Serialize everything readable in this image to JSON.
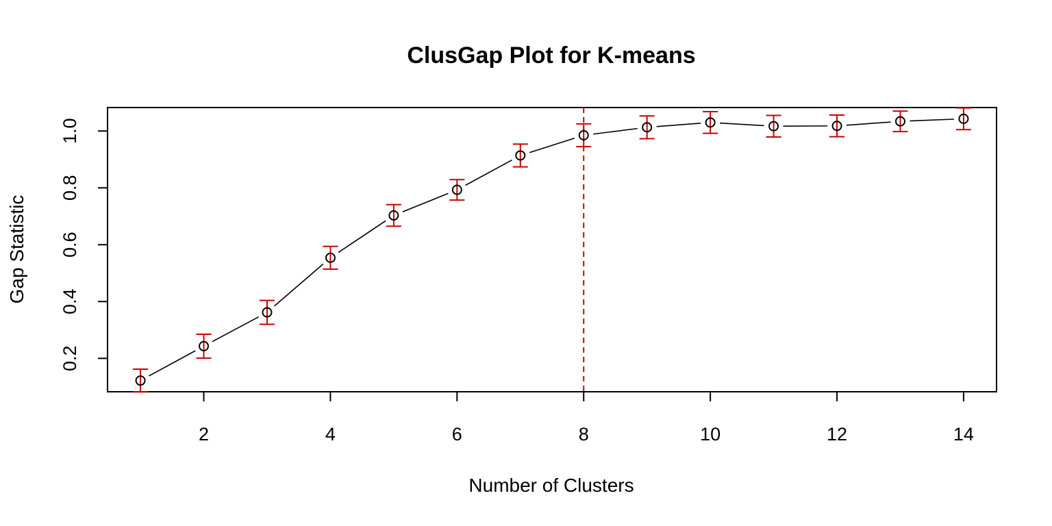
{
  "chart_data": {
    "type": "scatter",
    "title": "ClusGap Plot for K-means",
    "xlabel": "Number of Clusters",
    "ylabel": "Gap Statistic",
    "x": [
      1,
      2,
      3,
      4,
      5,
      6,
      7,
      8,
      9,
      10,
      11,
      12,
      13,
      14
    ],
    "values": [
      0.122,
      0.243,
      0.362,
      0.554,
      0.703,
      0.793,
      0.914,
      0.985,
      1.013,
      1.03,
      1.017,
      1.018,
      1.034,
      1.043
    ],
    "errors": [
      0.04,
      0.042,
      0.042,
      0.04,
      0.038,
      0.036,
      0.04,
      0.04,
      0.04,
      0.038,
      0.038,
      0.038,
      0.036,
      0.038
    ],
    "xticks": [
      2,
      4,
      6,
      8,
      10,
      12,
      14
    ],
    "yticks": [
      0.2,
      0.4,
      0.6,
      0.8,
      1.0
    ],
    "xlim": [
      0.48,
      14.52
    ],
    "ylim": [
      0.0826,
      1.0826
    ],
    "vline_x": 8,
    "colors": {
      "points": "#000000",
      "line": "#000000",
      "errorbars": "#CC0000",
      "vline": "#CC0000"
    },
    "grid": false,
    "legend": "none"
  }
}
